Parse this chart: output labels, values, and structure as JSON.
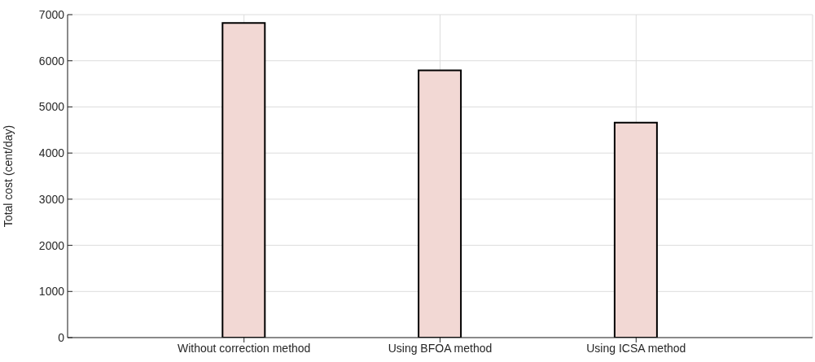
{
  "chart_data": {
    "type": "bar",
    "ylabel": "Total cost (cent/day)",
    "categories": [
      "Without correction method",
      "Using BFOA method",
      "Using ICSA method"
    ],
    "values": [
      6820,
      5790,
      4660
    ],
    "color": "#f2d8d4",
    "ylim": [
      0,
      7000
    ],
    "yticks": [
      0,
      1000,
      2000,
      3000,
      4000,
      5000,
      6000,
      7000
    ],
    "grid": true
  }
}
